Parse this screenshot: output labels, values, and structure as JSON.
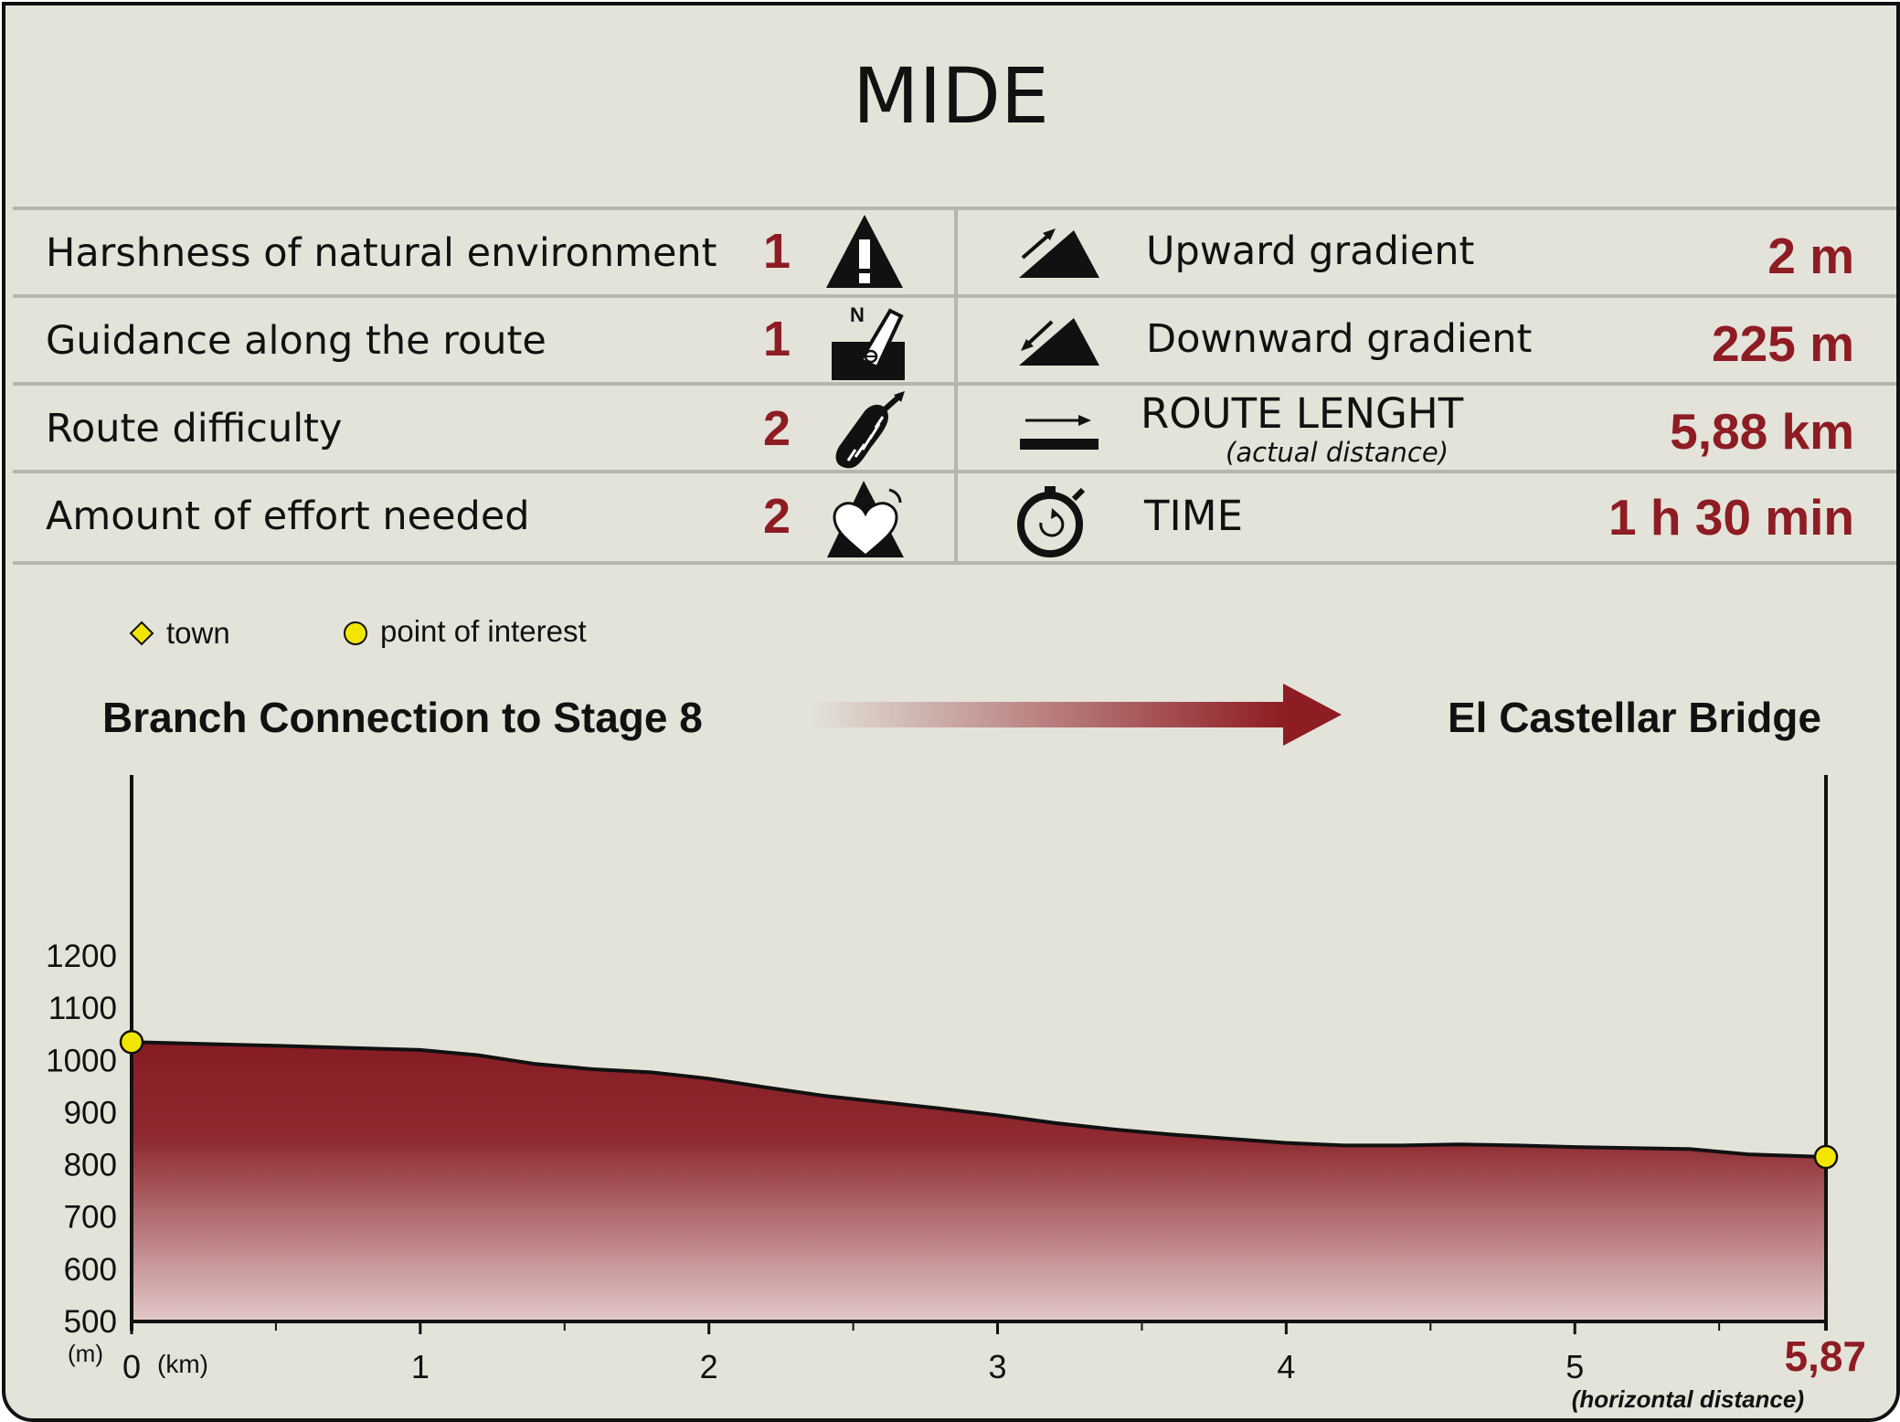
{
  "title": "MIDE",
  "mide": {
    "left": [
      {
        "label": "Harshness of natural environment",
        "value": "1",
        "icon": "warning-triangle-icon"
      },
      {
        "label": "Guidance along the route",
        "value": "1",
        "icon": "compass-map-icon"
      },
      {
        "label": "Route difficulty",
        "value": "2",
        "icon": "footprint-icon"
      },
      {
        "label": "Amount of effort needed",
        "value": "2",
        "icon": "heart-mountain-icon"
      }
    ],
    "right": [
      {
        "label": "Upward gradient",
        "value": "2 m",
        "icon": "uphill-icon"
      },
      {
        "label": "Downward gradient",
        "value": "225 m",
        "icon": "downhill-icon"
      },
      {
        "label": "ROUTE LENGHT",
        "sublabel": "(actual distance)",
        "value": "5,88 km",
        "icon": "distance-arrow-icon"
      },
      {
        "label": "TIME",
        "value": "1 h 30 min",
        "icon": "stopwatch-icon"
      }
    ]
  },
  "legend": {
    "town": "town",
    "poi": "point of interest"
  },
  "route": {
    "start": "Branch Connection to Stage 8",
    "end": "El Castellar Bridge"
  },
  "colors": {
    "accent": "#8e1c23",
    "background": "#e3e3da",
    "marker": "#f2e600"
  },
  "chart_data": {
    "type": "area",
    "x": [
      0,
      0.5,
      1,
      1.2,
      1.4,
      1.6,
      1.8,
      2,
      2.2,
      2.4,
      2.6,
      2.8,
      3,
      3.2,
      3.4,
      3.6,
      3.8,
      4,
      4.2,
      4.4,
      4.6,
      4.8,
      5,
      5.2,
      5.4,
      5.6,
      5.87
    ],
    "y": [
      1035,
      1028,
      1020,
      1010,
      993,
      983,
      977,
      965,
      948,
      932,
      920,
      908,
      895,
      880,
      868,
      858,
      850,
      842,
      837,
      837,
      839,
      837,
      834,
      832,
      830,
      820,
      815
    ],
    "xlim": [
      0,
      5.87
    ],
    "ylim": [
      500,
      1200
    ],
    "xticks": [
      0,
      1,
      2,
      3,
      4,
      5
    ],
    "yticks": [
      500,
      600,
      700,
      800,
      900,
      1000,
      1100,
      1200
    ],
    "ylabel": "(m)",
    "xlabel": "(km)",
    "x_end_label": "5,87",
    "x_end_caption": "(horizontal distance)",
    "points_of_interest": [
      {
        "x": 0,
        "y": 1035
      },
      {
        "x": 5.87,
        "y": 815
      }
    ],
    "grid": false
  }
}
